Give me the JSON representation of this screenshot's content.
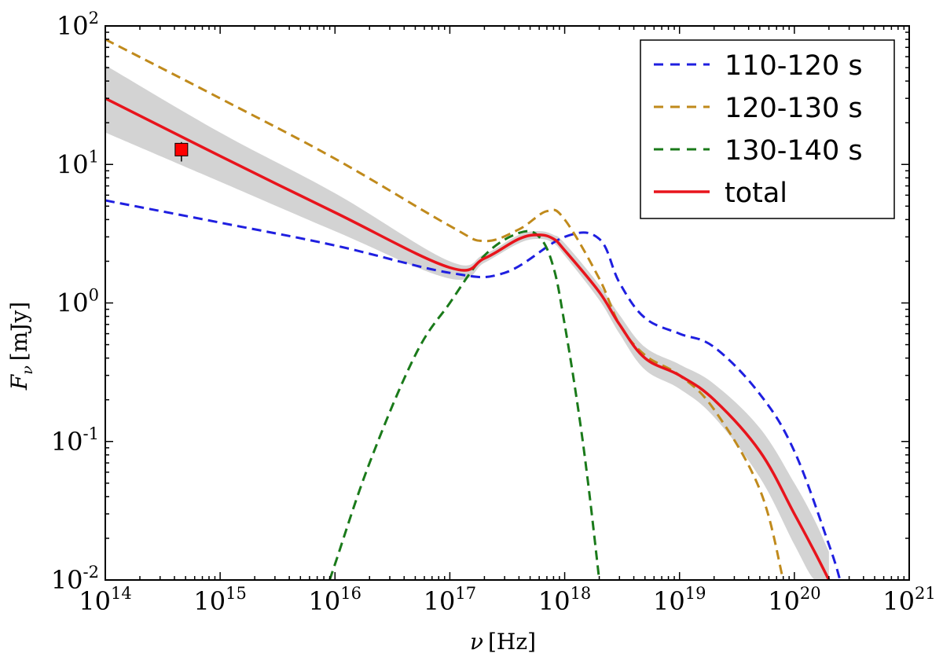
{
  "chart_data": {
    "type": "line",
    "title": "",
    "xlabel": {
      "symbol": "ν",
      "unit": "[Hz]"
    },
    "ylabel": {
      "symbol": "F",
      "subscript": "ν",
      "unit": "[mJy]"
    },
    "xscale": "log",
    "yscale": "log",
    "xlim": [
      100000000000000.0,
      1e+21
    ],
    "ylim": [
      0.01,
      100
    ],
    "grid": false,
    "legend_position": "top-right",
    "x_ticks": [
      {
        "value": 100000000000000.0,
        "base": "10",
        "exp": "14"
      },
      {
        "value": 1000000000000000.0,
        "base": "10",
        "exp": "15"
      },
      {
        "value": 1e+16,
        "base": "10",
        "exp": "16"
      },
      {
        "value": 1e+17,
        "base": "10",
        "exp": "17"
      },
      {
        "value": 1e+18,
        "base": "10",
        "exp": "18"
      },
      {
        "value": 1e+19,
        "base": "10",
        "exp": "19"
      },
      {
        "value": 1e+20,
        "base": "10",
        "exp": "20"
      },
      {
        "value": 1e+21,
        "base": "10",
        "exp": "21"
      }
    ],
    "y_ticks": [
      {
        "value": 0.01,
        "base": "10",
        "exp": "-2"
      },
      {
        "value": 0.1,
        "base": "10",
        "exp": "-1"
      },
      {
        "value": 1,
        "base": "10",
        "exp": "0"
      },
      {
        "value": 10,
        "base": "10",
        "exp": "1"
      },
      {
        "value": 100,
        "base": "10",
        "exp": "2"
      }
    ],
    "series": [
      {
        "name": "110-120 s",
        "color": "#1f1fe0",
        "style": "dashed",
        "x": [
          100000000000000.0,
          1000000000000000.0,
          1e+16,
          1e+17,
          3e+17,
          1e+18,
          2e+18,
          3e+18,
          5e+18,
          1e+19,
          2e+19,
          5e+19,
          1e+20,
          2e+20,
          2.5e+20
        ],
        "y": [
          5.5,
          3.8,
          2.6,
          1.65,
          1.65,
          3.0,
          2.9,
          1.4,
          0.78,
          0.6,
          0.48,
          0.22,
          0.085,
          0.018,
          0.01
        ]
      },
      {
        "name": "120-130 s",
        "color": "#c08a1c",
        "style": "dashed",
        "x": [
          100000000000000.0,
          1000000000000000.0,
          1e+16,
          1e+17,
          2e+17,
          4e+17,
          7e+17,
          1e+18,
          2e+18,
          3e+18,
          5e+18,
          1e+19,
          2e+19,
          5e+19,
          8e+19
        ],
        "y": [
          80,
          30,
          11,
          3.6,
          2.8,
          3.4,
          4.6,
          4.0,
          1.5,
          0.7,
          0.42,
          0.3,
          0.17,
          0.045,
          0.01
        ]
      },
      {
        "name": "130-140 s",
        "color": "#1a7a1a",
        "style": "dashed",
        "x": [
          9000000000000000.0,
          1e+16,
          2e+16,
          5e+16,
          1e+17,
          2e+17,
          4e+17,
          6e+17,
          8e+17,
          1e+18,
          1.3e+18,
          1.6e+18,
          2e+18
        ],
        "y": [
          0.01,
          0.013,
          0.07,
          0.42,
          1.0,
          2.2,
          3.2,
          3.0,
          1.8,
          0.7,
          0.18,
          0.05,
          0.01
        ]
      },
      {
        "name": "total",
        "color": "#e8141c",
        "style": "solid",
        "x": [
          100000000000000.0,
          1000000000000000.0,
          1e+16,
          1e+17,
          2e+17,
          4e+17,
          6e+17,
          8e+17,
          1e+18,
          2e+18,
          3e+18,
          5e+18,
          1e+19,
          2e+19,
          5e+19,
          1e+20,
          1.5e+20,
          2e+20
        ],
        "y": [
          30,
          11.5,
          4.5,
          1.8,
          2.1,
          2.9,
          3.1,
          2.9,
          2.4,
          1.2,
          0.7,
          0.4,
          0.3,
          0.2,
          0.085,
          0.03,
          0.016,
          0.01
        ]
      }
    ],
    "uncertainty_band": {
      "color": "#d3d3d3",
      "x": [
        100000000000000.0,
        1000000000000000.0,
        1e+16,
        1e+17,
        2e+17,
        4e+17,
        6e+17,
        8e+17,
        1e+18,
        2e+18,
        3e+18,
        5e+18,
        1e+19,
        2e+19,
        5e+19,
        1e+20,
        1.5e+20,
        2e+20
      ],
      "lower": [
        17,
        7.5,
        3.3,
        1.5,
        1.95,
        2.7,
        2.9,
        2.7,
        2.2,
        1.05,
        0.6,
        0.33,
        0.24,
        0.15,
        0.055,
        0.018,
        0.01,
        0.01
      ],
      "upper": [
        52,
        17,
        6.2,
        2.0,
        2.25,
        3.1,
        3.3,
        3.1,
        2.7,
        1.35,
        0.82,
        0.48,
        0.36,
        0.26,
        0.125,
        0.05,
        0.027,
        0.016
      ]
    },
    "data_point": {
      "x": 460000000000000.0,
      "y": 12.8,
      "y_err_low": 10.5,
      "y_err_high": 14.5,
      "color": "#ff0000",
      "marker": "square"
    }
  }
}
